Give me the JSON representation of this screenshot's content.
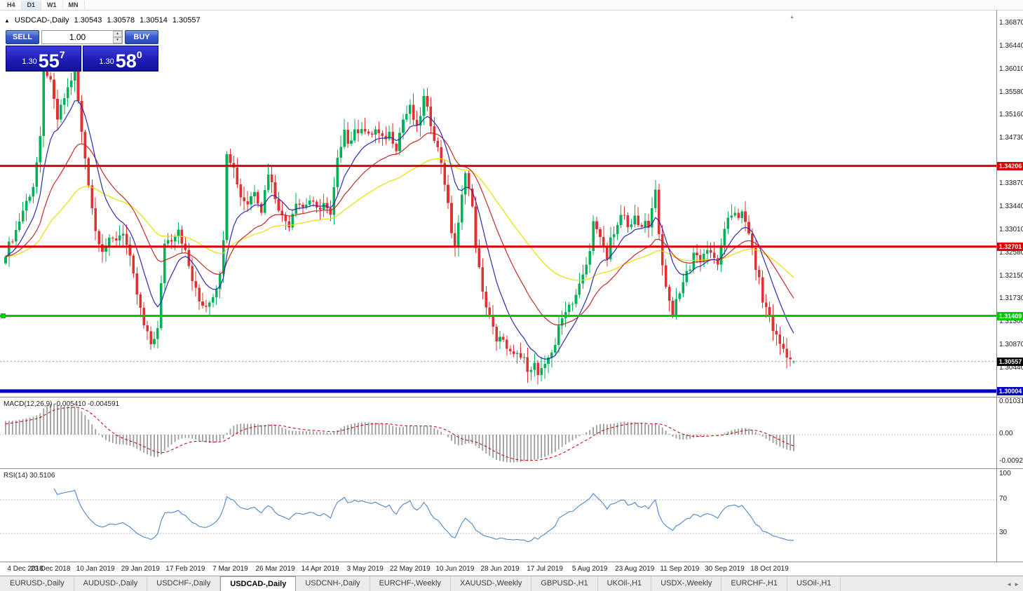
{
  "toolbar": {
    "timeframes": [
      {
        "label": "H4",
        "active": false
      },
      {
        "label": "D1",
        "active": true
      },
      {
        "label": "W1",
        "active": false
      },
      {
        "label": "MN",
        "active": false
      }
    ]
  },
  "chart_header": {
    "arrow": "▲",
    "title": "USDCAD-,Daily",
    "open": "1.30543",
    "high": "1.30578",
    "low": "1.30514",
    "close": "1.30557"
  },
  "trade_panel": {
    "sell_label": "SELL",
    "buy_label": "BUY",
    "volume": "1.00",
    "spinner_up": "▲",
    "spinner_down": "▼",
    "sell_price": {
      "prefix": "1.30",
      "big": "55",
      "sup": "7"
    },
    "buy_price": {
      "prefix": "1.30",
      "big": "58",
      "sup": "0"
    }
  },
  "price_axis": {
    "ticks": [
      "1.36870",
      "1.36440",
      "1.36010",
      "1.35580",
      "1.35160",
      "1.34730",
      "1.33870",
      "1.33440",
      "1.33010",
      "1.32580",
      "1.32150",
      "1.31730",
      "1.31300",
      "1.30870",
      "1.30440"
    ]
  },
  "levels": [
    {
      "label": "1.34206",
      "price": 1.34206,
      "color": "#dd0000",
      "width": 3,
      "handle": false
    },
    {
      "label": "1.32701",
      "price": 1.32701,
      "color": "#dd0000",
      "width": 3,
      "handle": false
    },
    {
      "label": "1.31409",
      "price": 1.31409,
      "color": "#00c800",
      "width": 3,
      "handle": true
    },
    {
      "label": "1.30004",
      "price": 1.30004,
      "color": "#0000c0",
      "width": 5,
      "handle": false
    }
  ],
  "current_price": {
    "label": "1.30557",
    "price": 1.30557,
    "badge_color": "#000000"
  },
  "macd_panel": {
    "label": "MACD(12,26,9) -0.005410 -0.004591",
    "axis": [
      {
        "text": "0.010311",
        "pos": "top"
      },
      {
        "text": "0.00",
        "pos": "zero"
      },
      {
        "text": "-0.00920",
        "pos": "bottom"
      }
    ]
  },
  "rsi_panel": {
    "label": "RSI(14) 30.5106",
    "axis": [
      {
        "text": "100",
        "value": 100
      },
      {
        "text": "70",
        "value": 70
      },
      {
        "text": "30",
        "value": 30
      }
    ]
  },
  "date_axis": [
    "4 Dec 2018",
    "23 Dec 2018",
    "10 Jan 2019",
    "29 Jan 2019",
    "17 Feb 2019",
    "7 Mar 2019",
    "26 Mar 2019",
    "14 Apr 2019",
    "3 May 2019",
    "22 May 2019",
    "10 Jun 2019",
    "28 Jun 2019",
    "17 Jul 2019",
    "5 Aug 2019",
    "23 Aug 2019",
    "11 Sep 2019",
    "30 Sep 2019",
    "18 Oct 2019"
  ],
  "tabs": [
    {
      "label": "EURUSD-,Daily",
      "active": false
    },
    {
      "label": "AUDUSD-,Daily",
      "active": false
    },
    {
      "label": "USDCHF-,Daily",
      "active": false
    },
    {
      "label": "USDCAD-,Daily",
      "active": true
    },
    {
      "label": "USDCNH-,Daily",
      "active": false
    },
    {
      "label": "EURCHF-,Weekly",
      "active": false
    },
    {
      "label": "XAUUSD-,Weekly",
      "active": false
    },
    {
      "label": "GBPUSD-,H1",
      "active": false
    },
    {
      "label": "UKOil-,H1",
      "active": false
    },
    {
      "label": "USDX-,Weekly",
      "active": false
    },
    {
      "label": "EURCHF-,H1",
      "active": false
    },
    {
      "label": "USOil-,H1",
      "active": false
    }
  ],
  "tab_scroll": {
    "left": "◄",
    "right": "►"
  },
  "chart_data": {
    "type": "candlestick",
    "symbol": "USDCAD",
    "period": "Daily",
    "title": "USDCAD-,Daily",
    "current_ohlc": {
      "open": 1.30543,
      "high": 1.30578,
      "low": 1.30514,
      "close": 1.30557
    },
    "candle_count": 229,
    "x_tick_labels": [
      "4 Dec 2018",
      "23 Dec 2018",
      "10 Jan 2019",
      "29 Jan 2019",
      "17 Feb 2019",
      "7 Mar 2019",
      "26 Mar 2019",
      "14 Apr 2019",
      "3 May 2019",
      "22 May 2019",
      "10 Jun 2019",
      "28 Jun 2019",
      "17 Jul 2019",
      "5 Aug 2019",
      "23 Aug 2019",
      "11 Sep 2019",
      "30 Sep 2019",
      "18 Oct 2019"
    ],
    "y_tick_values": [
      1.3687,
      1.3644,
      1.3601,
      1.3558,
      1.3516,
      1.3473,
      1.3387,
      1.3344,
      1.3301,
      1.3258,
      1.3215,
      1.3173,
      1.313,
      1.3087,
      1.3044
    ],
    "horizontal_levels": [
      1.34206,
      1.32701,
      1.31409,
      1.30004
    ],
    "colors": {
      "up": "#00b257",
      "down": "#e03232",
      "ma_fast": "#2b2bb4",
      "ma_mid": "#c62828",
      "ma_slow": "#e5e000",
      "macd_hist": "#9c9c9c",
      "macd_signal": "#c00000",
      "rsi": "#3f7cc2",
      "level_red": "#dd0000",
      "level_green": "#00c800",
      "level_blue": "#0000c0"
    },
    "moving_averages": [
      {
        "period": 55,
        "color_key": "ma_slow"
      },
      {
        "period": 25,
        "color_key": "ma_mid"
      },
      {
        "period": 10,
        "color_key": "ma_fast"
      }
    ],
    "close_path_anchors": [
      [
        0,
        1.3259
      ],
      [
        3,
        1.33
      ],
      [
        5,
        1.3338
      ],
      [
        8,
        1.3384
      ],
      [
        10,
        1.3469
      ],
      [
        11,
        1.3613
      ],
      [
        13,
        1.3574
      ],
      [
        15,
        1.3508
      ],
      [
        17,
        1.3548
      ],
      [
        20,
        1.36
      ],
      [
        22,
        1.3482
      ],
      [
        24,
        1.339
      ],
      [
        26,
        1.3299
      ],
      [
        28,
        1.3266
      ],
      [
        30,
        1.3279
      ],
      [
        32,
        1.3285
      ],
      [
        34,
        1.3299
      ],
      [
        36,
        1.3246
      ],
      [
        38,
        1.3181
      ],
      [
        40,
        1.3122
      ],
      [
        42,
        1.3089
      ],
      [
        44,
        1.3115
      ],
      [
        46,
        1.3279
      ],
      [
        48,
        1.3285
      ],
      [
        50,
        1.3305
      ],
      [
        52,
        1.3259
      ],
      [
        54,
        1.3207
      ],
      [
        56,
        1.3168
      ],
      [
        58,
        1.3161
      ],
      [
        60,
        1.3181
      ],
      [
        62,
        1.3214
      ],
      [
        63,
        1.329
      ],
      [
        64,
        1.3449
      ],
      [
        66,
        1.3416
      ],
      [
        68,
        1.3364
      ],
      [
        70,
        1.3351
      ],
      [
        72,
        1.3377
      ],
      [
        74,
        1.3338
      ],
      [
        76,
        1.341
      ],
      [
        78,
        1.3364
      ],
      [
        80,
        1.3325
      ],
      [
        82,
        1.3312
      ],
      [
        84,
        1.3357
      ],
      [
        86,
        1.3344
      ],
      [
        88,
        1.3357
      ],
      [
        90,
        1.3338
      ],
      [
        92,
        1.3351
      ],
      [
        94,
        1.3325
      ],
      [
        96,
        1.3429
      ],
      [
        98,
        1.3495
      ],
      [
        99,
        1.3462
      ],
      [
        101,
        1.3482
      ],
      [
        103,
        1.3495
      ],
      [
        105,
        1.3475
      ],
      [
        107,
        1.3488
      ],
      [
        109,
        1.3469
      ],
      [
        111,
        1.3482
      ],
      [
        113,
        1.3456
      ],
      [
        115,
        1.3508
      ],
      [
        117,
        1.3528
      ],
      [
        119,
        1.3488
      ],
      [
        121,
        1.3547
      ],
      [
        123,
        1.3501
      ],
      [
        124,
        1.3475
      ],
      [
        126,
        1.3429
      ],
      [
        127,
        1.339
      ],
      [
        129,
        1.3299
      ],
      [
        130,
        1.3273
      ],
      [
        131,
        1.331
      ],
      [
        133,
        1.3415
      ],
      [
        135,
        1.334
      ],
      [
        136,
        1.3273
      ],
      [
        138,
        1.3181
      ],
      [
        140,
        1.3142
      ],
      [
        141,
        1.3116
      ],
      [
        142,
        1.3089
      ],
      [
        144,
        1.3103
      ],
      [
        145,
        1.3076
      ],
      [
        147,
        1.3063
      ],
      [
        148,
        1.307
      ],
      [
        150,
        1.3057
      ],
      [
        151,
        1.3044
      ],
      [
        153,
        1.305
      ],
      [
        154,
        1.303
      ],
      [
        156,
        1.3044
      ],
      [
        157,
        1.3063
      ],
      [
        159,
        1.3089
      ],
      [
        160,
        1.3116
      ],
      [
        162,
        1.3155
      ],
      [
        164,
        1.3168
      ],
      [
        165,
        1.3181
      ],
      [
        167,
        1.3214
      ],
      [
        169,
        1.3259
      ],
      [
        170,
        1.3325
      ],
      [
        171,
        1.3299
      ],
      [
        173,
        1.3266
      ],
      [
        174,
        1.3246
      ],
      [
        175,
        1.3285
      ],
      [
        177,
        1.3312
      ],
      [
        179,
        1.3331
      ],
      [
        180,
        1.3299
      ],
      [
        182,
        1.3325
      ],
      [
        183,
        1.3305
      ],
      [
        185,
        1.3325
      ],
      [
        186,
        1.3299
      ],
      [
        188,
        1.3377
      ],
      [
        189,
        1.3299
      ],
      [
        190,
        1.3233
      ],
      [
        192,
        1.3168
      ],
      [
        193,
        1.3148
      ],
      [
        195,
        1.3181
      ],
      [
        196,
        1.3207
      ],
      [
        198,
        1.3233
      ],
      [
        199,
        1.3259
      ],
      [
        201,
        1.3246
      ],
      [
        203,
        1.3266
      ],
      [
        204,
        1.3253
      ],
      [
        206,
        1.324
      ],
      [
        207,
        1.3266
      ],
      [
        209,
        1.3325
      ],
      [
        211,
        1.3338
      ],
      [
        212,
        1.3318
      ],
      [
        213,
        1.3331
      ],
      [
        215,
        1.3299
      ],
      [
        216,
        1.3259
      ],
      [
        218,
        1.3207
      ],
      [
        219,
        1.3168
      ],
      [
        221,
        1.3142
      ],
      [
        222,
        1.3116
      ],
      [
        224,
        1.3089
      ],
      [
        226,
        1.307
      ],
      [
        227,
        1.306
      ],
      [
        228,
        1.30557
      ]
    ],
    "indicators": [
      {
        "type": "MACD",
        "fast": 12,
        "slow": 26,
        "signal": 9,
        "last_main": -0.00541,
        "last_signal": -0.004591,
        "axis_top": 0.010311,
        "axis_bottom": -0.0092
      },
      {
        "type": "RSI",
        "period": 14,
        "last_value": 30.5106,
        "levels": [
          70,
          30
        ]
      }
    ]
  }
}
